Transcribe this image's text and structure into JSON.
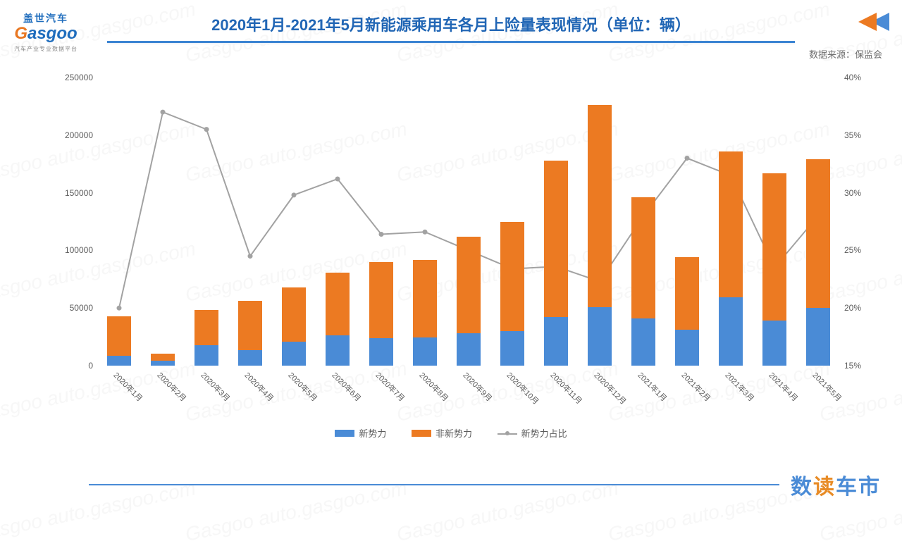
{
  "title": "2020年1月-2021年5月新能源乘用车各月上险量表现情况（单位：辆）",
  "title_fontsize": 22,
  "title_color": "#2166b5",
  "source_label": "数据来源：保监会",
  "logo": {
    "cn": "盖世汽车",
    "en_pre": "G",
    "en_rest": "asgoo",
    "sub": "汽车产业专业数据平台"
  },
  "footer_brand_a": "数",
  "footer_brand_b": "读",
  "footer_brand_c": "车市",
  "watermark_text": "Gasgoo auto.gasgoo.com",
  "legend": {
    "s1": "新势力",
    "s2": "非新势力",
    "s3": "新势力占比"
  },
  "colors": {
    "series1": "#4a8bd6",
    "series2": "#ec7a22",
    "line": "#a2a2a2",
    "marker": "#a2a2a2",
    "grid": "#ffffff",
    "axis_text": "#5b5b5b",
    "title_underline": "#3b84d2",
    "background": "#ffffff"
  },
  "chart": {
    "type": "stacked-bar-with-line",
    "y_left": {
      "min": 0,
      "max": 250000,
      "step": 50000
    },
    "y_right": {
      "min": 15,
      "max": 40,
      "step": 5,
      "suffix": "%"
    },
    "bar_width_rel": 0.54,
    "line_width": 2,
    "marker_radius": 3.5,
    "categories": [
      "2020年1月",
      "2020年2月",
      "2020年3月",
      "2020年4月",
      "2020年5月",
      "2020年6月",
      "2020年7月",
      "2020年8月",
      "2020年9月",
      "2020年10月",
      "2020年11月",
      "2020年12月",
      "2021年1月",
      "2021年2月",
      "2021年3月",
      "2021年4月",
      "2021年5月"
    ],
    "series1_values": [
      8500,
      4000,
      18000,
      13500,
      21000,
      26000,
      24000,
      24500,
      28000,
      30000,
      42000,
      51000,
      41000,
      31000,
      59000,
      39000,
      50000
    ],
    "series2_values": [
      34500,
      6500,
      30000,
      42500,
      47000,
      55000,
      66000,
      67500,
      84000,
      95000,
      136000,
      175000,
      105000,
      63000,
      127000,
      128000,
      129000
    ],
    "line_values_pct": [
      20.0,
      37.0,
      35.5,
      24.5,
      29.8,
      31.2,
      26.4,
      26.6,
      25.0,
      23.4,
      23.6,
      22.3,
      28.0,
      33.0,
      31.5,
      23.5,
      28.0
    ]
  }
}
